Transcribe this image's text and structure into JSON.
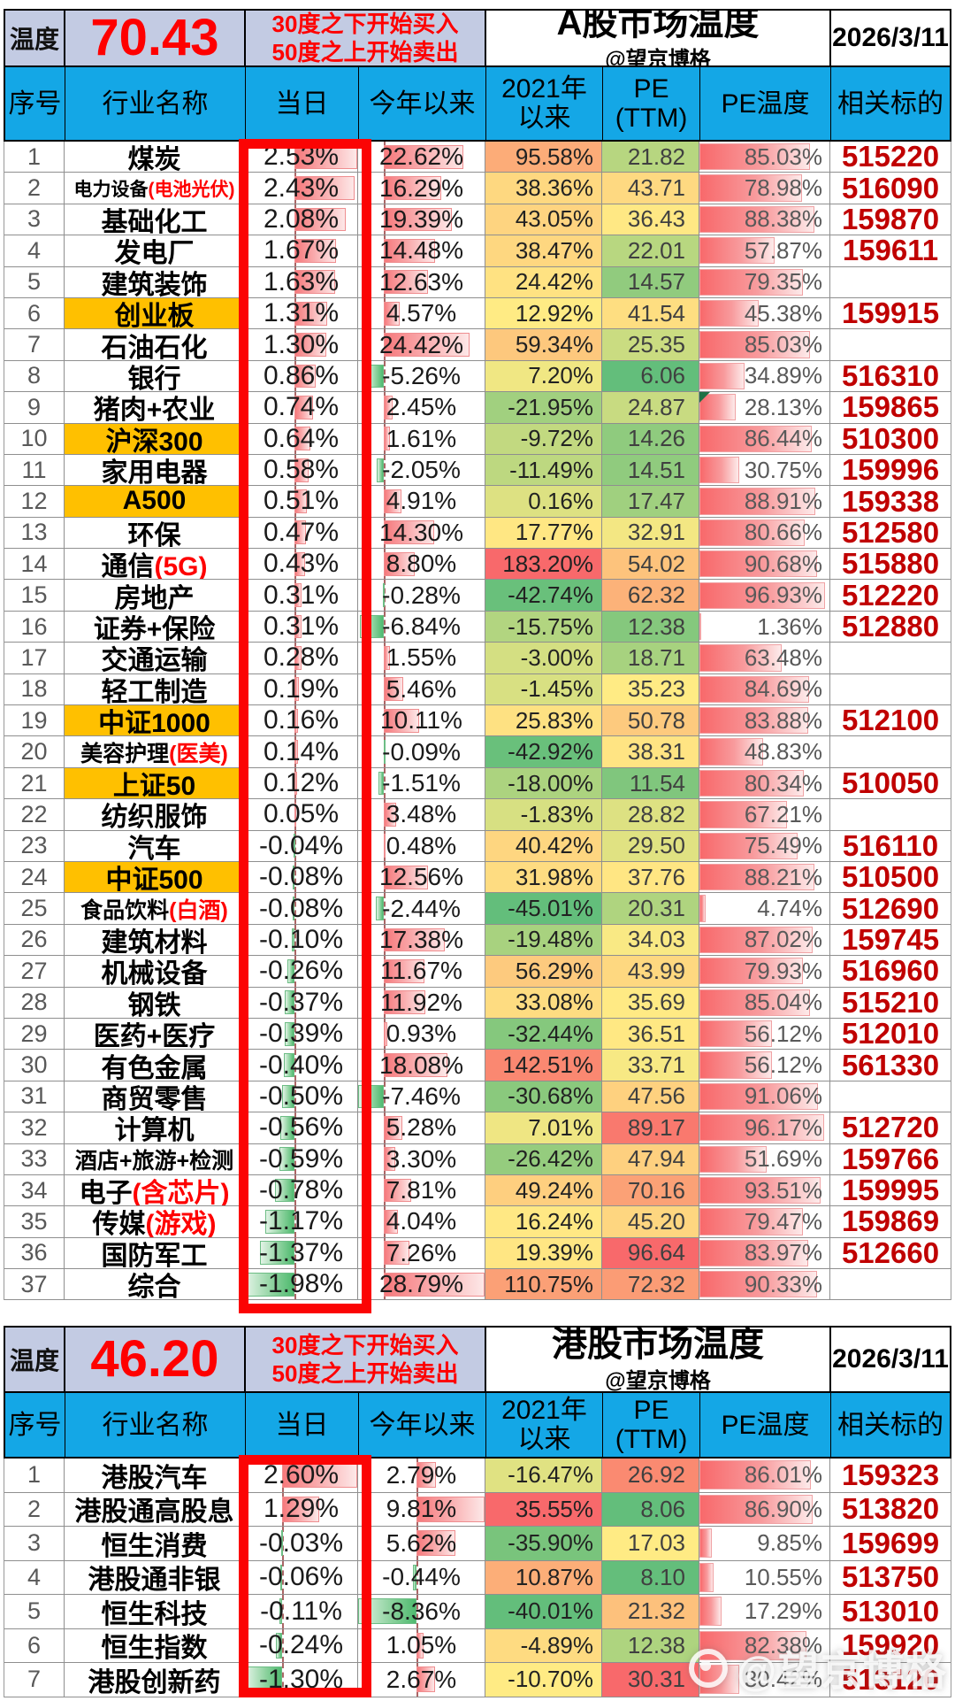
{
  "colors": {
    "header_blue": "#14a7e6",
    "temp_header_bg": "#c3cbe3",
    "temperature_red": "#fe0000",
    "highlight_yellow": "#ffc000",
    "ticker_red": "#c00000",
    "frame_red": "#fb0404",
    "scale_min_green": "#63BE7B",
    "scale_mid_yellow": "#FFEB84",
    "scale_max_red": "#F8696B"
  },
  "watermark": {
    "handle": "@望京博格"
  },
  "a_share": {
    "temp_label": "温度",
    "temperature": "70.43",
    "rules": [
      "30度之下开始买入",
      "50度之上开始卖出"
    ],
    "title": "A股市场温度",
    "subtitle": "@望京博格",
    "date": "2026/3/11",
    "columns": [
      "序号",
      "行业名称",
      "当日",
      "今年以来",
      "2021年以来",
      "PE (TTM)",
      "PE温度",
      "相关标的"
    ],
    "rows": [
      {
        "no": 1,
        "name": "煤炭",
        "suffix": "",
        "today": 2.53,
        "ytd": 22.62,
        "since_2021": 95.58,
        "pe_ttm": 21.82,
        "pe_temp": 85.03,
        "ticker": "515220",
        "highlight": false
      },
      {
        "no": 2,
        "name": "电力设备",
        "suffix": "(电池光伏)",
        "today": 2.43,
        "ytd": 16.29,
        "since_2021": 38.36,
        "pe_ttm": 43.71,
        "pe_temp": 78.98,
        "ticker": "516090",
        "highlight": false
      },
      {
        "no": 3,
        "name": "基础化工",
        "suffix": "",
        "today": 2.08,
        "ytd": 19.39,
        "since_2021": 43.05,
        "pe_ttm": 36.43,
        "pe_temp": 88.38,
        "ticker": "159870",
        "highlight": false
      },
      {
        "no": 4,
        "name": "发电厂",
        "suffix": "",
        "today": 1.67,
        "ytd": 14.48,
        "since_2021": 38.47,
        "pe_ttm": 22.01,
        "pe_temp": 57.87,
        "ticker": "159611",
        "highlight": false
      },
      {
        "no": 5,
        "name": "建筑装饰",
        "suffix": "",
        "today": 1.63,
        "ytd": 12.63,
        "since_2021": 24.42,
        "pe_ttm": 14.57,
        "pe_temp": 79.35,
        "ticker": "",
        "highlight": false
      },
      {
        "no": 6,
        "name": "创业板",
        "suffix": "",
        "today": 1.31,
        "ytd": 4.57,
        "since_2021": 12.92,
        "pe_ttm": 41.54,
        "pe_temp": 45.38,
        "ticker": "159915",
        "highlight": true
      },
      {
        "no": 7,
        "name": "石油石化",
        "suffix": "",
        "today": 1.3,
        "ytd": 24.42,
        "since_2021": 59.34,
        "pe_ttm": 25.35,
        "pe_temp": 85.03,
        "ticker": "",
        "highlight": false
      },
      {
        "no": 8,
        "name": "银行",
        "suffix": "",
        "today": 0.86,
        "ytd": -5.26,
        "since_2021": 7.2,
        "pe_ttm": 6.06,
        "pe_temp": 34.89,
        "ticker": "516310",
        "highlight": false
      },
      {
        "no": 9,
        "name": "猪肉+农业",
        "suffix": "",
        "today": 0.74,
        "ytd": 2.45,
        "since_2021": -21.95,
        "pe_ttm": 24.87,
        "pe_temp": 28.13,
        "ticker": "159865",
        "highlight": false,
        "corner": true
      },
      {
        "no": 10,
        "name": "沪深300",
        "suffix": "",
        "today": 0.64,
        "ytd": 1.61,
        "since_2021": -9.72,
        "pe_ttm": 14.26,
        "pe_temp": 86.44,
        "ticker": "510300",
        "highlight": true
      },
      {
        "no": 11,
        "name": "家用电器",
        "suffix": "",
        "today": 0.58,
        "ytd": -2.05,
        "since_2021": -11.49,
        "pe_ttm": 14.51,
        "pe_temp": 30.75,
        "ticker": "159996",
        "highlight": false
      },
      {
        "no": 12,
        "name": "A500",
        "suffix": "",
        "today": 0.51,
        "ytd": 4.91,
        "since_2021": 0.16,
        "pe_ttm": 17.47,
        "pe_temp": 88.91,
        "ticker": "159338",
        "highlight": true
      },
      {
        "no": 13,
        "name": "环保",
        "suffix": "",
        "today": 0.47,
        "ytd": 14.3,
        "since_2021": 17.77,
        "pe_ttm": 32.91,
        "pe_temp": 80.66,
        "ticker": "512580",
        "highlight": false
      },
      {
        "no": 14,
        "name": "通信",
        "suffix": "(5G)",
        "today": 0.43,
        "ytd": 8.8,
        "since_2021": 183.2,
        "pe_ttm": 54.02,
        "pe_temp": 90.68,
        "ticker": "515880",
        "highlight": false
      },
      {
        "no": 15,
        "name": "房地产",
        "suffix": "",
        "today": 0.31,
        "ytd": -0.28,
        "since_2021": -42.74,
        "pe_ttm": 62.32,
        "pe_temp": 96.93,
        "ticker": "512220",
        "highlight": false
      },
      {
        "no": 16,
        "name": "证券+保险",
        "suffix": "",
        "today": 0.31,
        "ytd": -6.84,
        "since_2021": -15.75,
        "pe_ttm": 12.38,
        "pe_temp": 1.36,
        "ticker": "512880",
        "highlight": false
      },
      {
        "no": 17,
        "name": "交通运输",
        "suffix": "",
        "today": 0.28,
        "ytd": 1.55,
        "since_2021": -3.0,
        "pe_ttm": 18.71,
        "pe_temp": 63.48,
        "ticker": "",
        "highlight": false
      },
      {
        "no": 18,
        "name": "轻工制造",
        "suffix": "",
        "today": 0.19,
        "ytd": 5.46,
        "since_2021": -1.45,
        "pe_ttm": 35.23,
        "pe_temp": 84.69,
        "ticker": "",
        "highlight": false
      },
      {
        "no": 19,
        "name": "中证1000",
        "suffix": "",
        "today": 0.16,
        "ytd": 10.11,
        "since_2021": 25.83,
        "pe_ttm": 50.78,
        "pe_temp": 83.88,
        "ticker": "512100",
        "highlight": true
      },
      {
        "no": 20,
        "name": "美容护理",
        "suffix": "(医美)",
        "today": 0.14,
        "ytd": -0.09,
        "since_2021": -42.92,
        "pe_ttm": 38.31,
        "pe_temp": 48.83,
        "ticker": "",
        "highlight": false
      },
      {
        "no": 21,
        "name": "上证50",
        "suffix": "",
        "today": 0.12,
        "ytd": -1.51,
        "since_2021": -18.0,
        "pe_ttm": 11.54,
        "pe_temp": 80.34,
        "ticker": "510050",
        "highlight": true
      },
      {
        "no": 22,
        "name": "纺织服饰",
        "suffix": "",
        "today": 0.05,
        "ytd": 3.48,
        "since_2021": -1.83,
        "pe_ttm": 28.82,
        "pe_temp": 67.21,
        "ticker": "",
        "highlight": false
      },
      {
        "no": 23,
        "name": "汽车",
        "suffix": "",
        "today": -0.04,
        "ytd": 0.48,
        "since_2021": 40.42,
        "pe_ttm": 29.5,
        "pe_temp": 75.49,
        "ticker": "516110",
        "highlight": false
      },
      {
        "no": 24,
        "name": "中证500",
        "suffix": "",
        "today": -0.08,
        "ytd": 12.56,
        "since_2021": 31.98,
        "pe_ttm": 37.76,
        "pe_temp": 88.21,
        "ticker": "510500",
        "highlight": true
      },
      {
        "no": 25,
        "name": "食品饮料",
        "suffix": "(白酒)",
        "today": -0.08,
        "ytd": -2.44,
        "since_2021": -45.01,
        "pe_ttm": 20.31,
        "pe_temp": 4.74,
        "ticker": "512690",
        "highlight": false
      },
      {
        "no": 26,
        "name": "建筑材料",
        "suffix": "",
        "today": -0.1,
        "ytd": 17.38,
        "since_2021": -19.48,
        "pe_ttm": 34.03,
        "pe_temp": 87.02,
        "ticker": "159745",
        "highlight": false
      },
      {
        "no": 27,
        "name": "机械设备",
        "suffix": "",
        "today": -0.26,
        "ytd": 11.67,
        "since_2021": 56.29,
        "pe_ttm": 43.99,
        "pe_temp": 79.93,
        "ticker": "516960",
        "highlight": false
      },
      {
        "no": 28,
        "name": "钢铁",
        "suffix": "",
        "today": -0.37,
        "ytd": 11.92,
        "since_2021": 33.08,
        "pe_ttm": 35.69,
        "pe_temp": 85.04,
        "ticker": "515210",
        "highlight": false
      },
      {
        "no": 29,
        "name": "医药+医疗",
        "suffix": "",
        "today": -0.39,
        "ytd": 0.93,
        "since_2021": -32.44,
        "pe_ttm": 36.51,
        "pe_temp": 56.12,
        "ticker": "512010",
        "highlight": false
      },
      {
        "no": 30,
        "name": "有色金属",
        "suffix": "",
        "today": -0.4,
        "ytd": 18.08,
        "since_2021": 142.51,
        "pe_ttm": 33.71,
        "pe_temp": 56.12,
        "ticker": "561330",
        "highlight": false
      },
      {
        "no": 31,
        "name": "商贸零售",
        "suffix": "",
        "today": -0.5,
        "ytd": -7.46,
        "since_2021": -30.68,
        "pe_ttm": 47.56,
        "pe_temp": 91.06,
        "ticker": "",
        "highlight": false
      },
      {
        "no": 32,
        "name": "计算机",
        "suffix": "",
        "today": -0.56,
        "ytd": 5.28,
        "since_2021": 7.01,
        "pe_ttm": 89.17,
        "pe_temp": 96.17,
        "ticker": "512720",
        "highlight": false
      },
      {
        "no": 33,
        "name": "酒店+旅游+检测",
        "suffix": "",
        "today": -0.59,
        "ytd": 3.3,
        "since_2021": -26.42,
        "pe_ttm": 47.94,
        "pe_temp": 51.69,
        "ticker": "159766",
        "highlight": false
      },
      {
        "no": 34,
        "name": "电子",
        "suffix": "(含芯片)",
        "today": -0.78,
        "ytd": 7.81,
        "since_2021": 49.24,
        "pe_ttm": 70.16,
        "pe_temp": 93.51,
        "ticker": "159995",
        "highlight": false
      },
      {
        "no": 35,
        "name": "传媒",
        "suffix": "(游戏)",
        "today": -1.17,
        "ytd": 4.04,
        "since_2021": 16.24,
        "pe_ttm": 45.2,
        "pe_temp": 79.47,
        "ticker": "159869",
        "highlight": false
      },
      {
        "no": 36,
        "name": "国防军工",
        "suffix": "",
        "today": -1.37,
        "ytd": 7.26,
        "since_2021": 19.39,
        "pe_ttm": 96.64,
        "pe_temp": 83.97,
        "ticker": "512660",
        "highlight": false
      },
      {
        "no": 37,
        "name": "综合",
        "suffix": "",
        "today": -1.98,
        "ytd": 28.79,
        "since_2021": 110.75,
        "pe_ttm": 72.32,
        "pe_temp": 90.33,
        "ticker": "",
        "highlight": false
      }
    ]
  },
  "hk": {
    "temp_label": "温度",
    "temperature": "46.20",
    "rules": [
      "30度之下开始买入",
      "50度之上开始卖出"
    ],
    "title": "港股市场温度",
    "subtitle": "@望京博格",
    "date": "2026/3/11",
    "columns": [
      "序号",
      "行业名称",
      "当日",
      "今年以来",
      "2021年以来",
      "PE (TTM)",
      "PE温度",
      "相关标的"
    ],
    "rows": [
      {
        "no": 1,
        "name": "港股汽车",
        "suffix": "",
        "today": 2.6,
        "ytd": 2.79,
        "since_2021": -16.47,
        "pe_ttm": 26.92,
        "pe_temp": 86.01,
        "ticker": "159323",
        "highlight": false
      },
      {
        "no": 2,
        "name": "港股通高股息",
        "suffix": "",
        "today": 1.29,
        "ytd": 9.81,
        "since_2021": 35.55,
        "pe_ttm": 8.06,
        "pe_temp": 86.9,
        "ticker": "513820",
        "highlight": false
      },
      {
        "no": 3,
        "name": "恒生消费",
        "suffix": "",
        "today": -0.03,
        "ytd": 5.62,
        "since_2021": -35.9,
        "pe_ttm": 17.03,
        "pe_temp": 9.85,
        "ticker": "159699",
        "highlight": false
      },
      {
        "no": 4,
        "name": "港股通非银",
        "suffix": "",
        "today": -0.06,
        "ytd": -0.44,
        "since_2021": 10.87,
        "pe_ttm": 8.1,
        "pe_temp": 10.55,
        "ticker": "513750",
        "highlight": false
      },
      {
        "no": 5,
        "name": "恒生科技",
        "suffix": "",
        "today": -0.11,
        "ytd": -8.36,
        "since_2021": -40.01,
        "pe_ttm": 21.32,
        "pe_temp": 17.29,
        "ticker": "513010",
        "highlight": false
      },
      {
        "no": 6,
        "name": "恒生指数",
        "suffix": "",
        "today": -0.24,
        "ytd": 1.05,
        "since_2021": -4.89,
        "pe_ttm": 12.38,
        "pe_temp": 82.38,
        "ticker": "159920",
        "highlight": false
      },
      {
        "no": 7,
        "name": "港股创新药",
        "suffix": "",
        "today": -1.3,
        "ytd": 2.67,
        "since_2021": -10.7,
        "pe_ttm": 30.31,
        "pe_temp": 30.42,
        "ticker": "513120",
        "highlight": false
      }
    ]
  }
}
